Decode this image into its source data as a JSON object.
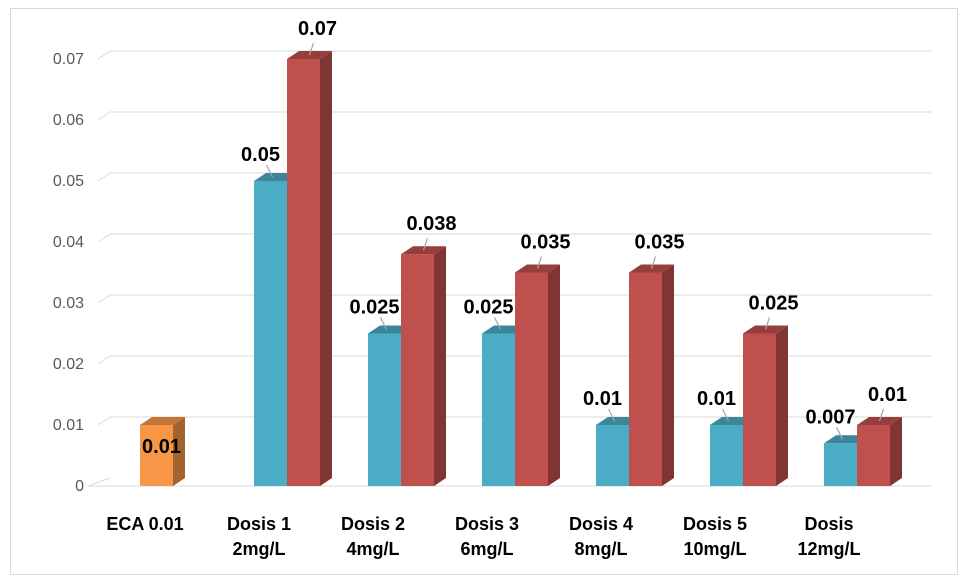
{
  "chart_data": {
    "type": "bar",
    "title": "",
    "xlabel": "",
    "ylabel": "",
    "ylim": [
      0,
      0.07
    ],
    "yticks": [
      "0",
      "0.01",
      "0.02",
      "0.03",
      "0.04",
      "0.05",
      "0.06",
      "0.07"
    ],
    "grid": true,
    "legend": "none",
    "style": "3d-clustered-column",
    "categories": [
      [
        "ECA 0.01"
      ],
      [
        "Dosis 1",
        "2mg/L"
      ],
      [
        "Dosis 2",
        "4mg/L"
      ],
      [
        "Dosis 3",
        "6mg/L"
      ],
      [
        "Dosis 4",
        "8mg/L"
      ],
      [
        "Dosis 5",
        "10mg/L"
      ],
      [
        "Dosis",
        "12mg/L"
      ]
    ],
    "series": [
      {
        "color": "#4bacc6",
        "values": [
          null,
          0.05,
          0.025,
          0.025,
          0.01,
          0.01,
          0.007
        ],
        "labels": [
          null,
          "0.05",
          "0.025",
          "0.025",
          "0.01",
          "0.01",
          "0.007"
        ]
      },
      {
        "color": "#c0504d",
        "values": [
          null,
          0.07,
          0.038,
          0.035,
          0.035,
          0.025,
          0.01
        ],
        "labels": [
          null,
          "0.07",
          "0.038",
          "0.035",
          "0.035",
          "0.025",
          "0.01"
        ]
      }
    ],
    "reference": {
      "category_index": 0,
      "value": 0.01,
      "label": "0.01",
      "color": "#f79646"
    }
  }
}
